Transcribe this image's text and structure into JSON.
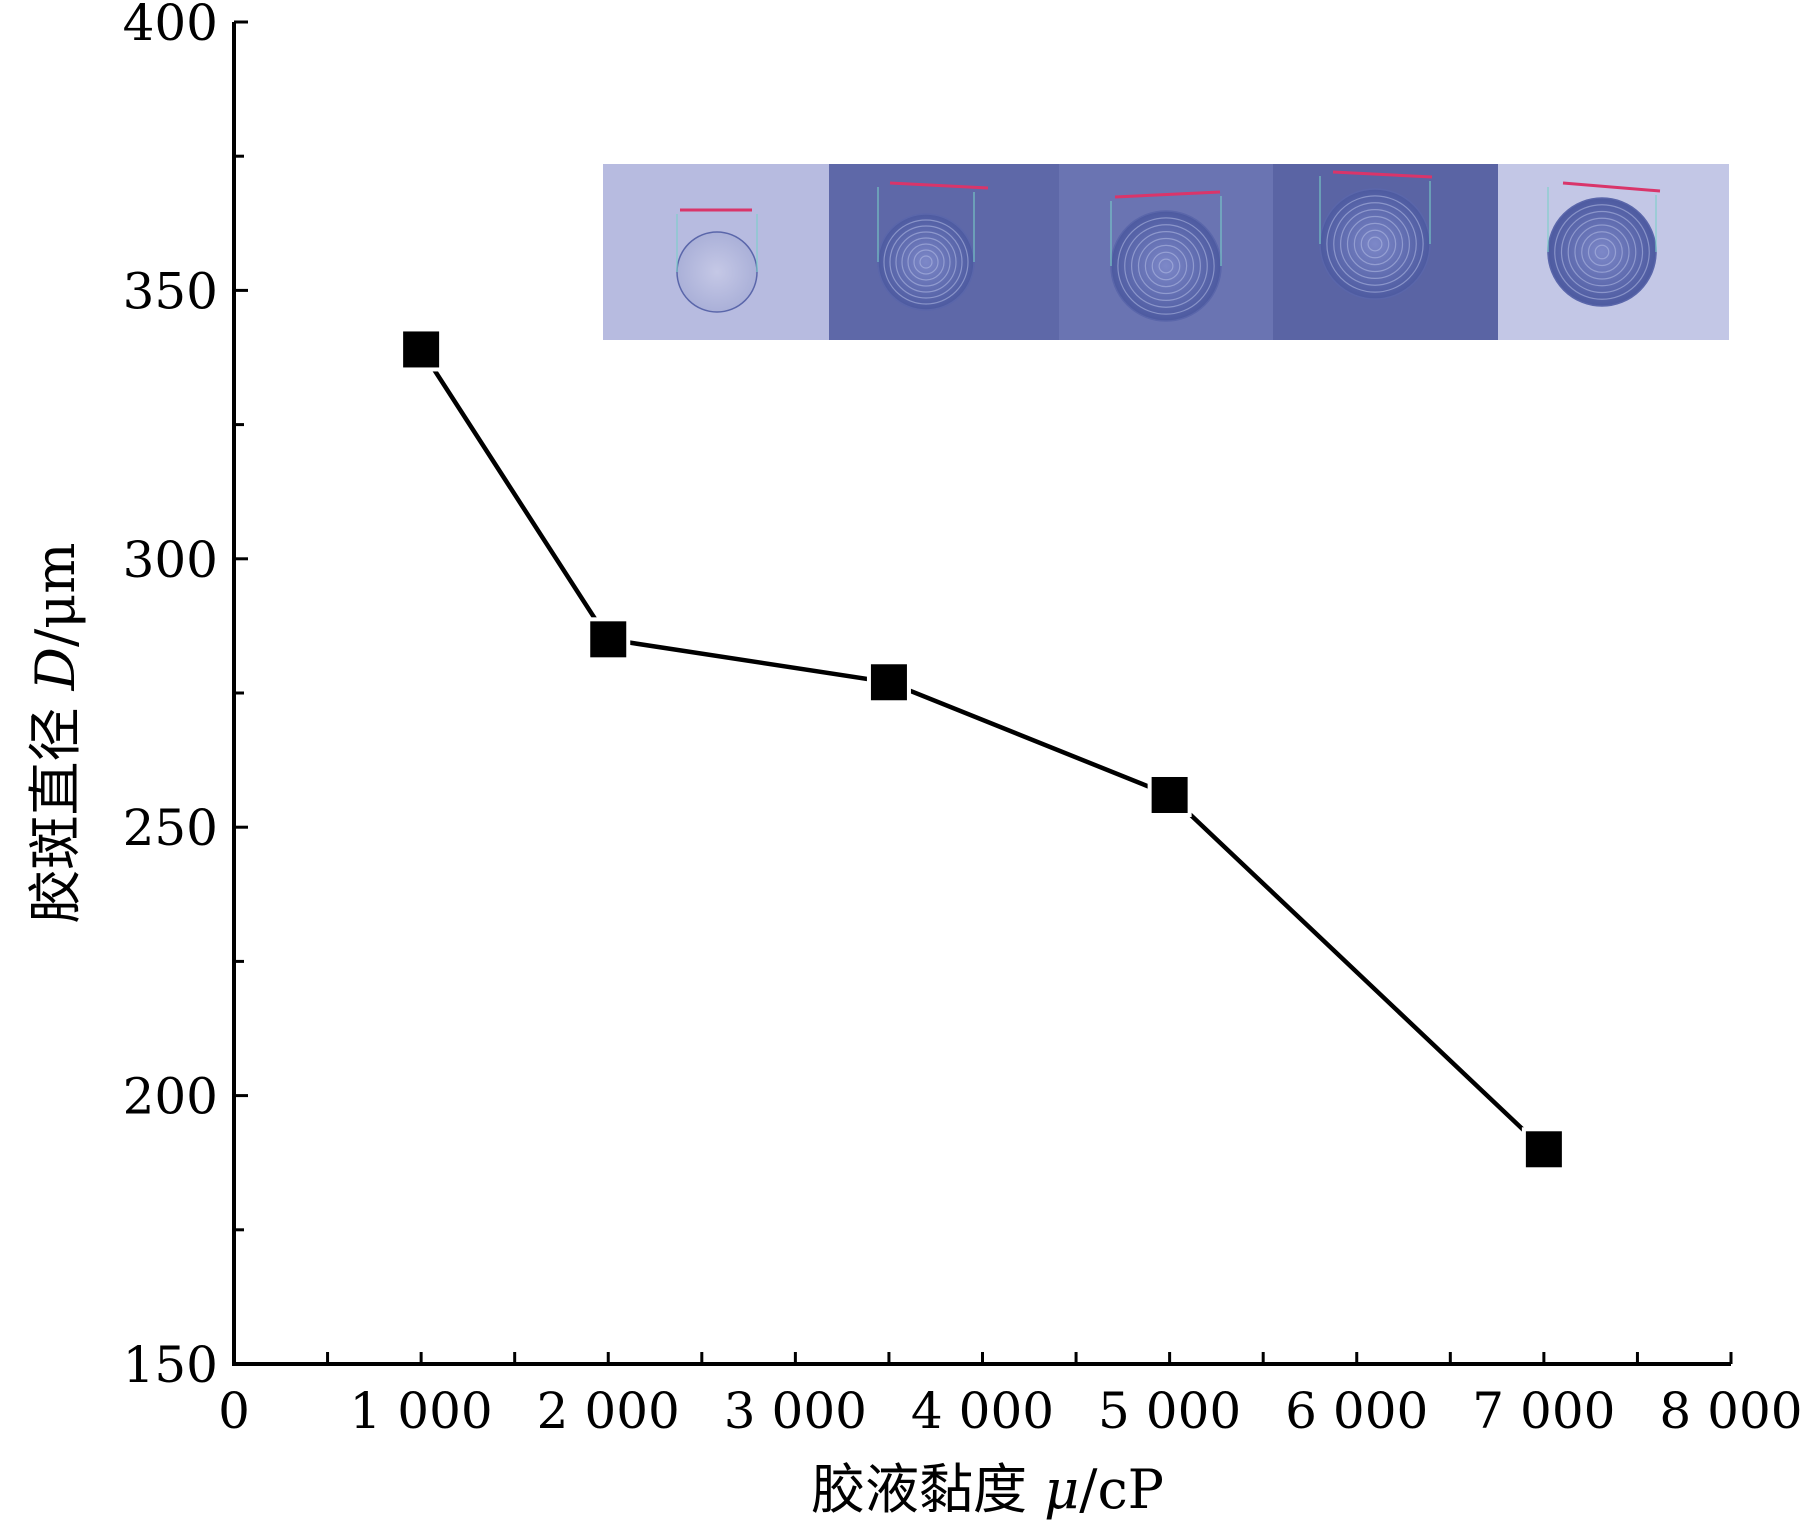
{
  "chart_data": {
    "type": "line",
    "xlabel": "胶液黏度 μ/cP",
    "xlabel_parts": {
      "text": "胶液黏度 ",
      "symbol": "μ",
      "unit": "/cP"
    },
    "ylabel": "胶斑直径 D/μm",
    "ylabel_parts": {
      "text": "胶斑直径 ",
      "symbol": "D",
      "unit": "/μm"
    },
    "xlim": [
      0,
      8000
    ],
    "ylim": [
      150,
      400
    ],
    "x_ticks": [
      0,
      1000,
      2000,
      3000,
      4000,
      5000,
      6000,
      7000,
      8000
    ],
    "x_tick_labels": [
      "0",
      "1 000",
      "2 000",
      "3 000",
      "4 000",
      "5 000",
      "6 000",
      "7 000",
      "8 000"
    ],
    "y_ticks": [
      150,
      200,
      250,
      300,
      350,
      400
    ],
    "y_tick_labels": [
      "150",
      "200",
      "250",
      "300",
      "350",
      "400"
    ],
    "grid": false,
    "legend": "none",
    "marker": "square",
    "series": [
      {
        "color": "#000000",
        "x": [
          1000,
          2000,
          3500,
          5000,
          7000
        ],
        "y": [
          339,
          285,
          277,
          256,
          190
        ]
      }
    ],
    "inset": {
      "description_type": "micrograph-strip",
      "panels": 5,
      "colors": [
        "#b7bbe0",
        "#5e68a8",
        "#6a74b2",
        "#5a64a4",
        "#c3c7e6"
      ]
    }
  }
}
